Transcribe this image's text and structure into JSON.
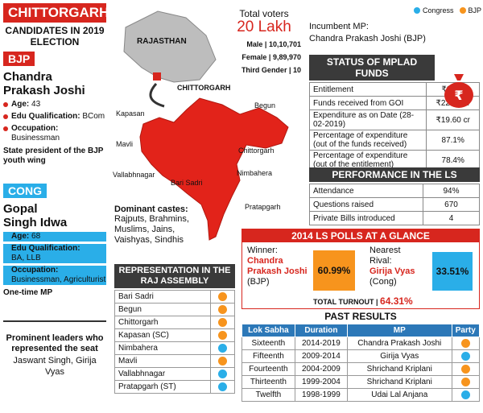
{
  "region": "CHITTORGARH",
  "candidates_title": "CANDIDATES IN 2019 ELECTION",
  "bjp": {
    "party": "BJP",
    "name_line1": "Chandra",
    "name_line2": "Prakash Joshi",
    "age_label": "Age:",
    "age": "43",
    "edu_label": "Edu Qualification:",
    "edu": "BCom",
    "occ_label": "Occupation:",
    "occ": "Businessman",
    "note": "State president of the BJP youth wing"
  },
  "cong": {
    "party": "CONG",
    "name_line1": "Gopal",
    "name_line2": "Singh Idwa",
    "age_label": "Age:",
    "age": "68",
    "edu_label": "Edu Qualification:",
    "edu": "BA, LLB",
    "occ_label": "Occupation:",
    "occ": "Businessman, Agriculturist",
    "note": "One-time MP"
  },
  "prominent": {
    "title": "Prominent leaders who represented the seat",
    "names": "Jaswant Singh, Girija Vyas"
  },
  "voters": {
    "title": "Total voters",
    "total": "20 Lakh",
    "male_label": "Male",
    "male": "10,10,701",
    "female_label": "Female",
    "female": "9,89,970",
    "third_label": "Third Gender",
    "third": "10"
  },
  "map": {
    "state": "RAJASTHAN",
    "district": "CHITTORGARH",
    "places": [
      "Kapasan",
      "Mavli",
      "Vallabhnagar",
      "Bari Sadri",
      "Begun",
      "Chittorgarh",
      "Nimbahera",
      "Pratapgarh"
    ]
  },
  "castes": {
    "title": "Dominant castes:",
    "list": "Rajputs, Brahmins, Muslims, Jains, Vaishyas, Sindhis"
  },
  "legend": {
    "congress": "Congress",
    "bjp": "BJP",
    "congress_color": "#2aaee8",
    "bjp_color": "#f7941d"
  },
  "incumbent": {
    "label": "Incumbent MP:",
    "name": "Chandra Prakash Joshi (BJP)"
  },
  "mplad": {
    "title": "STATUS OF MPLAD FUNDS",
    "rows": [
      {
        "label": "Entitlement",
        "value": "₹25 cr"
      },
      {
        "label": "Funds received from GOI",
        "value": "₹22.50 cr"
      },
      {
        "label": "Expenditure as on Date (28-02-2019)",
        "value": "₹19.60 cr"
      },
      {
        "label": "Percentage of expenditure (out of the funds received)",
        "value": "87.1%"
      },
      {
        "label": "Percentage of expenditure (out of the entitlement)",
        "value": "78.4%"
      }
    ]
  },
  "performance": {
    "title": "PERFORMANCE IN THE LS",
    "rows": [
      {
        "label": "Attendance",
        "value": "94%"
      },
      {
        "label": "Questions raised",
        "value": "670"
      },
      {
        "label": "Private Bills introduced",
        "value": "4"
      }
    ]
  },
  "polls2014": {
    "title": "2014 LS POLLS AT A GLANCE",
    "winner_label": "Winner:",
    "winner_name": "Chandra Prakash Joshi",
    "winner_party": "(BJP)",
    "winner_pct": "60.99%",
    "rival_label": "Nearest Rival:",
    "rival_name": "Girija Vyas",
    "rival_party": "(Cong)",
    "rival_pct": "33.51%",
    "turnout_label": "TOTAL TURNOUT |",
    "turnout": "64.31%"
  },
  "representation": {
    "title": "REPRESENTATION IN THE RAJ ASSEMBLY",
    "rows": [
      {
        "name": "Bari Sadri",
        "party": "bjp"
      },
      {
        "name": "Begun",
        "party": "bjp"
      },
      {
        "name": "Chittorgarh",
        "party": "bjp"
      },
      {
        "name": "Kapasan (SC)",
        "party": "bjp"
      },
      {
        "name": "Nimbahera",
        "party": "congress"
      },
      {
        "name": "Mavli",
        "party": "bjp"
      },
      {
        "name": "Vallabhnagar",
        "party": "congress"
      },
      {
        "name": "Pratapgarh (ST)",
        "party": "congress"
      }
    ]
  },
  "past": {
    "title": "PAST RESULTS",
    "headers": [
      "Lok Sabha",
      "Duration",
      "MP",
      "Party"
    ],
    "rows": [
      {
        "ls": "Sixteenth",
        "dur": "2014-2019",
        "mp": "Chandra Prakash Joshi",
        "party": "bjp"
      },
      {
        "ls": "Fifteenth",
        "dur": "2009-2014",
        "mp": "Girija Vyas",
        "party": "congress"
      },
      {
        "ls": "Fourteenth",
        "dur": "2004-2009",
        "mp": "Shrichand Kriplani",
        "party": "bjp"
      },
      {
        "ls": "Thirteenth",
        "dur": "1999-2004",
        "mp": "Shrichand Kriplani",
        "party": "bjp"
      },
      {
        "ls": "Twelfth",
        "dur": "1998-1999",
        "mp": "Udai Lal Anjana",
        "party": "congress"
      }
    ]
  }
}
